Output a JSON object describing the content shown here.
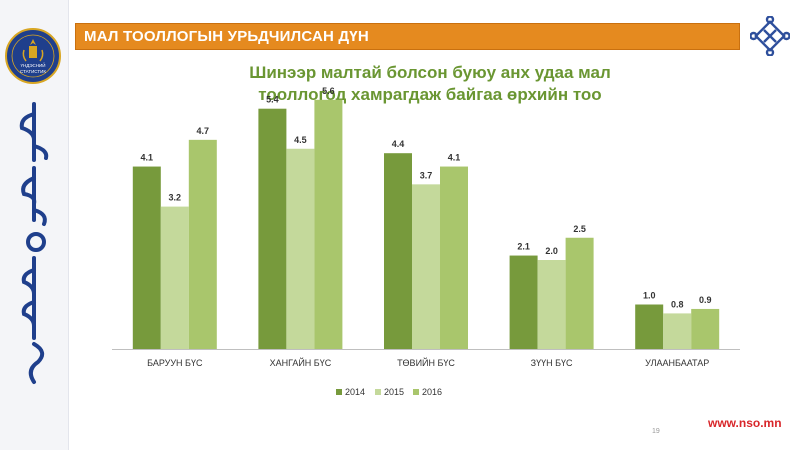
{
  "header": {
    "title": "МАЛ  ТООЛЛОГЫН УРЬДЧИЛСАН ДҮН"
  },
  "logo": {
    "text_line1": "ҮНДЭСНИЙ",
    "text_line2": "СТАТИСТИК"
  },
  "footer": {
    "website": "www.nso.mn",
    "page_number": "19"
  },
  "colors": {
    "header_bar": "#e58a1f",
    "title": "#6a9632",
    "website": "#d8262a",
    "series_2014": "#779a3c",
    "series_2015": "#c4d99b",
    "series_2016": "#a9c66c"
  },
  "chart_data": {
    "type": "bar",
    "title_line1": "Шинээр малтай болсон буюу анх удаа мал",
    "title_line2": "тооллогод хамрагдаж байгаа өрхийн тоо",
    "categories": [
      "БАРУУН БҮС",
      "ХАНГАЙН БҮС",
      "ТӨВИЙН БҮС",
      "ЗҮҮН БҮС",
      "УЛААНБААТАР"
    ],
    "series": [
      {
        "name": "2014",
        "values": [
          4.1,
          5.4,
          4.4,
          2.1,
          1.0
        ],
        "labels": [
          "4.1",
          "5.4",
          "4.4",
          "2.1",
          "1.0"
        ]
      },
      {
        "name": "2015",
        "values": [
          3.2,
          4.5,
          3.7,
          2.0,
          0.8
        ],
        "labels": [
          "3.2",
          "4.5",
          "3.7",
          "2.0",
          "0.8"
        ]
      },
      {
        "name": "2016",
        "values": [
          4.7,
          5.6,
          4.1,
          2.5,
          0.9
        ],
        "labels": [
          "4.7",
          "5.6",
          "4.1",
          "2.5",
          "0.9"
        ]
      }
    ],
    "ylim": [
      0,
      6
    ],
    "grid": false,
    "legend": "bottom",
    "data_labels": true
  }
}
